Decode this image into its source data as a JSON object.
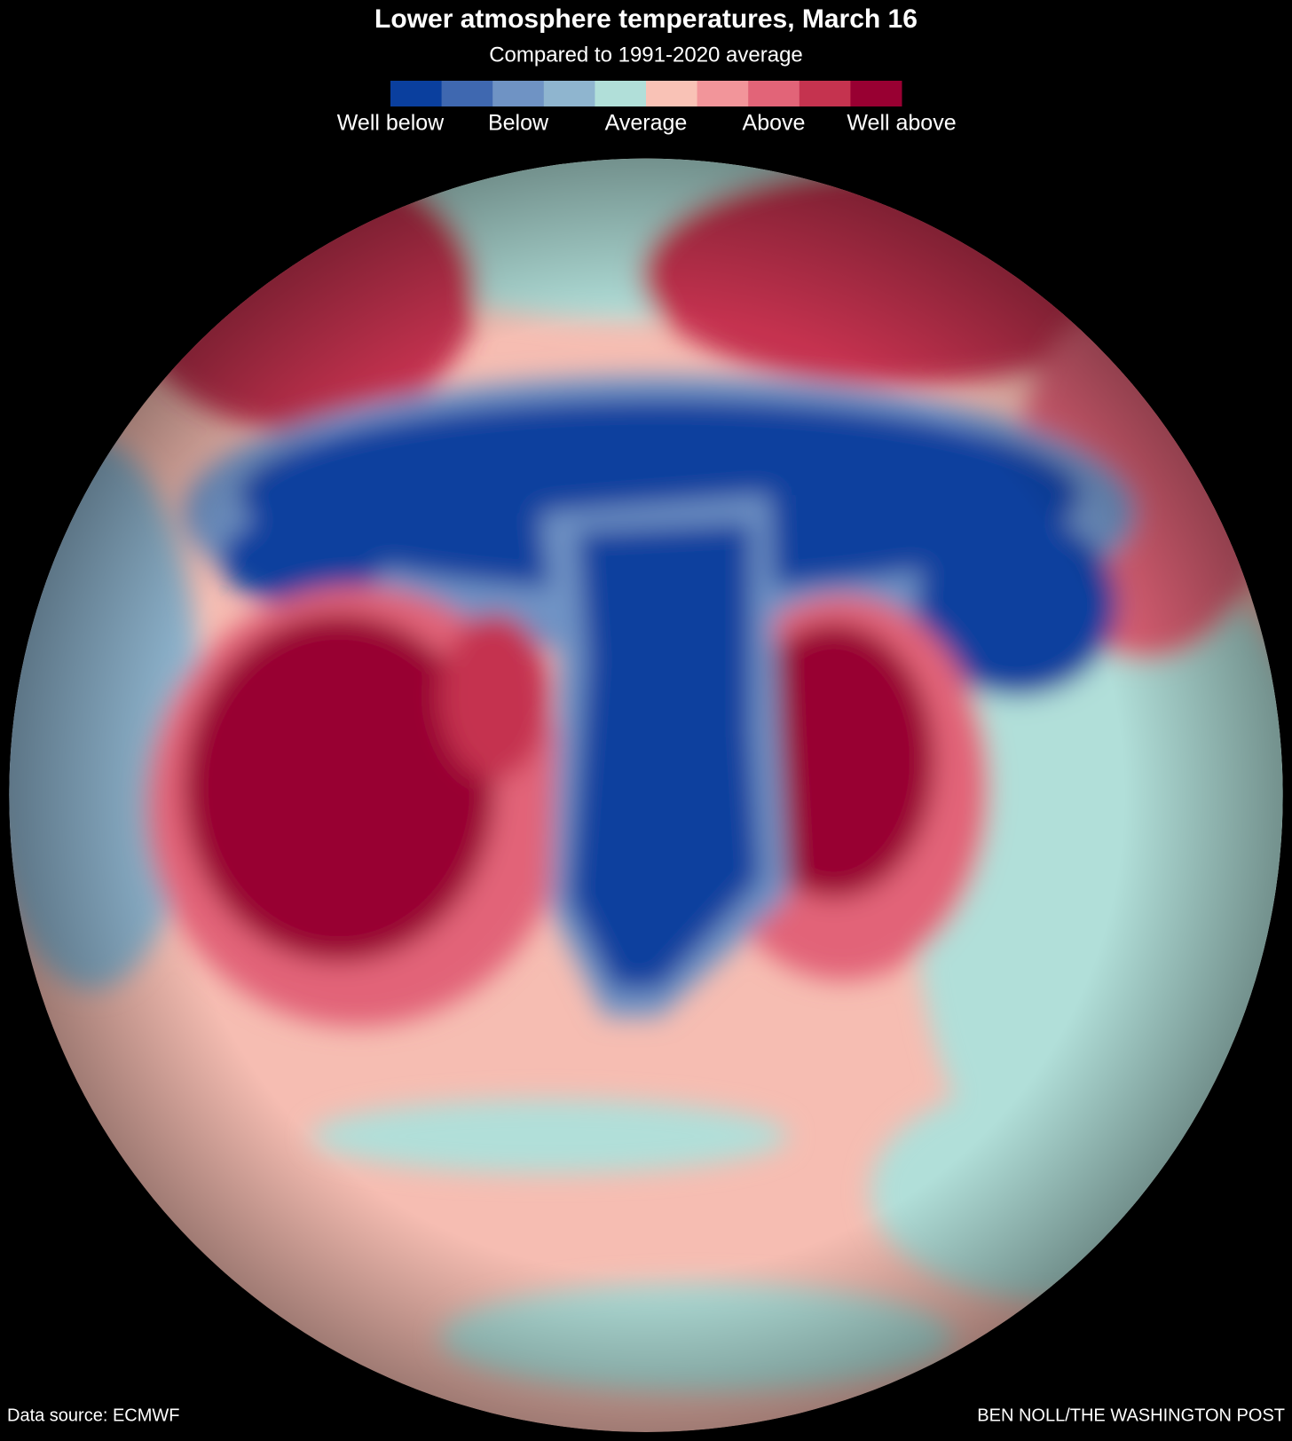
{
  "header": {
    "title": "Lower atmosphere temperatures, March 16",
    "subtitle": "Compared to 1991-2020 average"
  },
  "legend": {
    "colors": [
      "#0a3f9e",
      "#3f68b0",
      "#6f93c4",
      "#8fb5cf",
      "#b1dfd9",
      "#f9c2b6",
      "#f2959a",
      "#e26478",
      "#c5334f",
      "#980032"
    ],
    "labels": [
      "Well below",
      "Below",
      "Average",
      "Above",
      "Well above"
    ]
  },
  "footer": {
    "source": "Data source: ECMWF",
    "credit": "BEN NOLL/THE WASHINGTON POST"
  }
}
